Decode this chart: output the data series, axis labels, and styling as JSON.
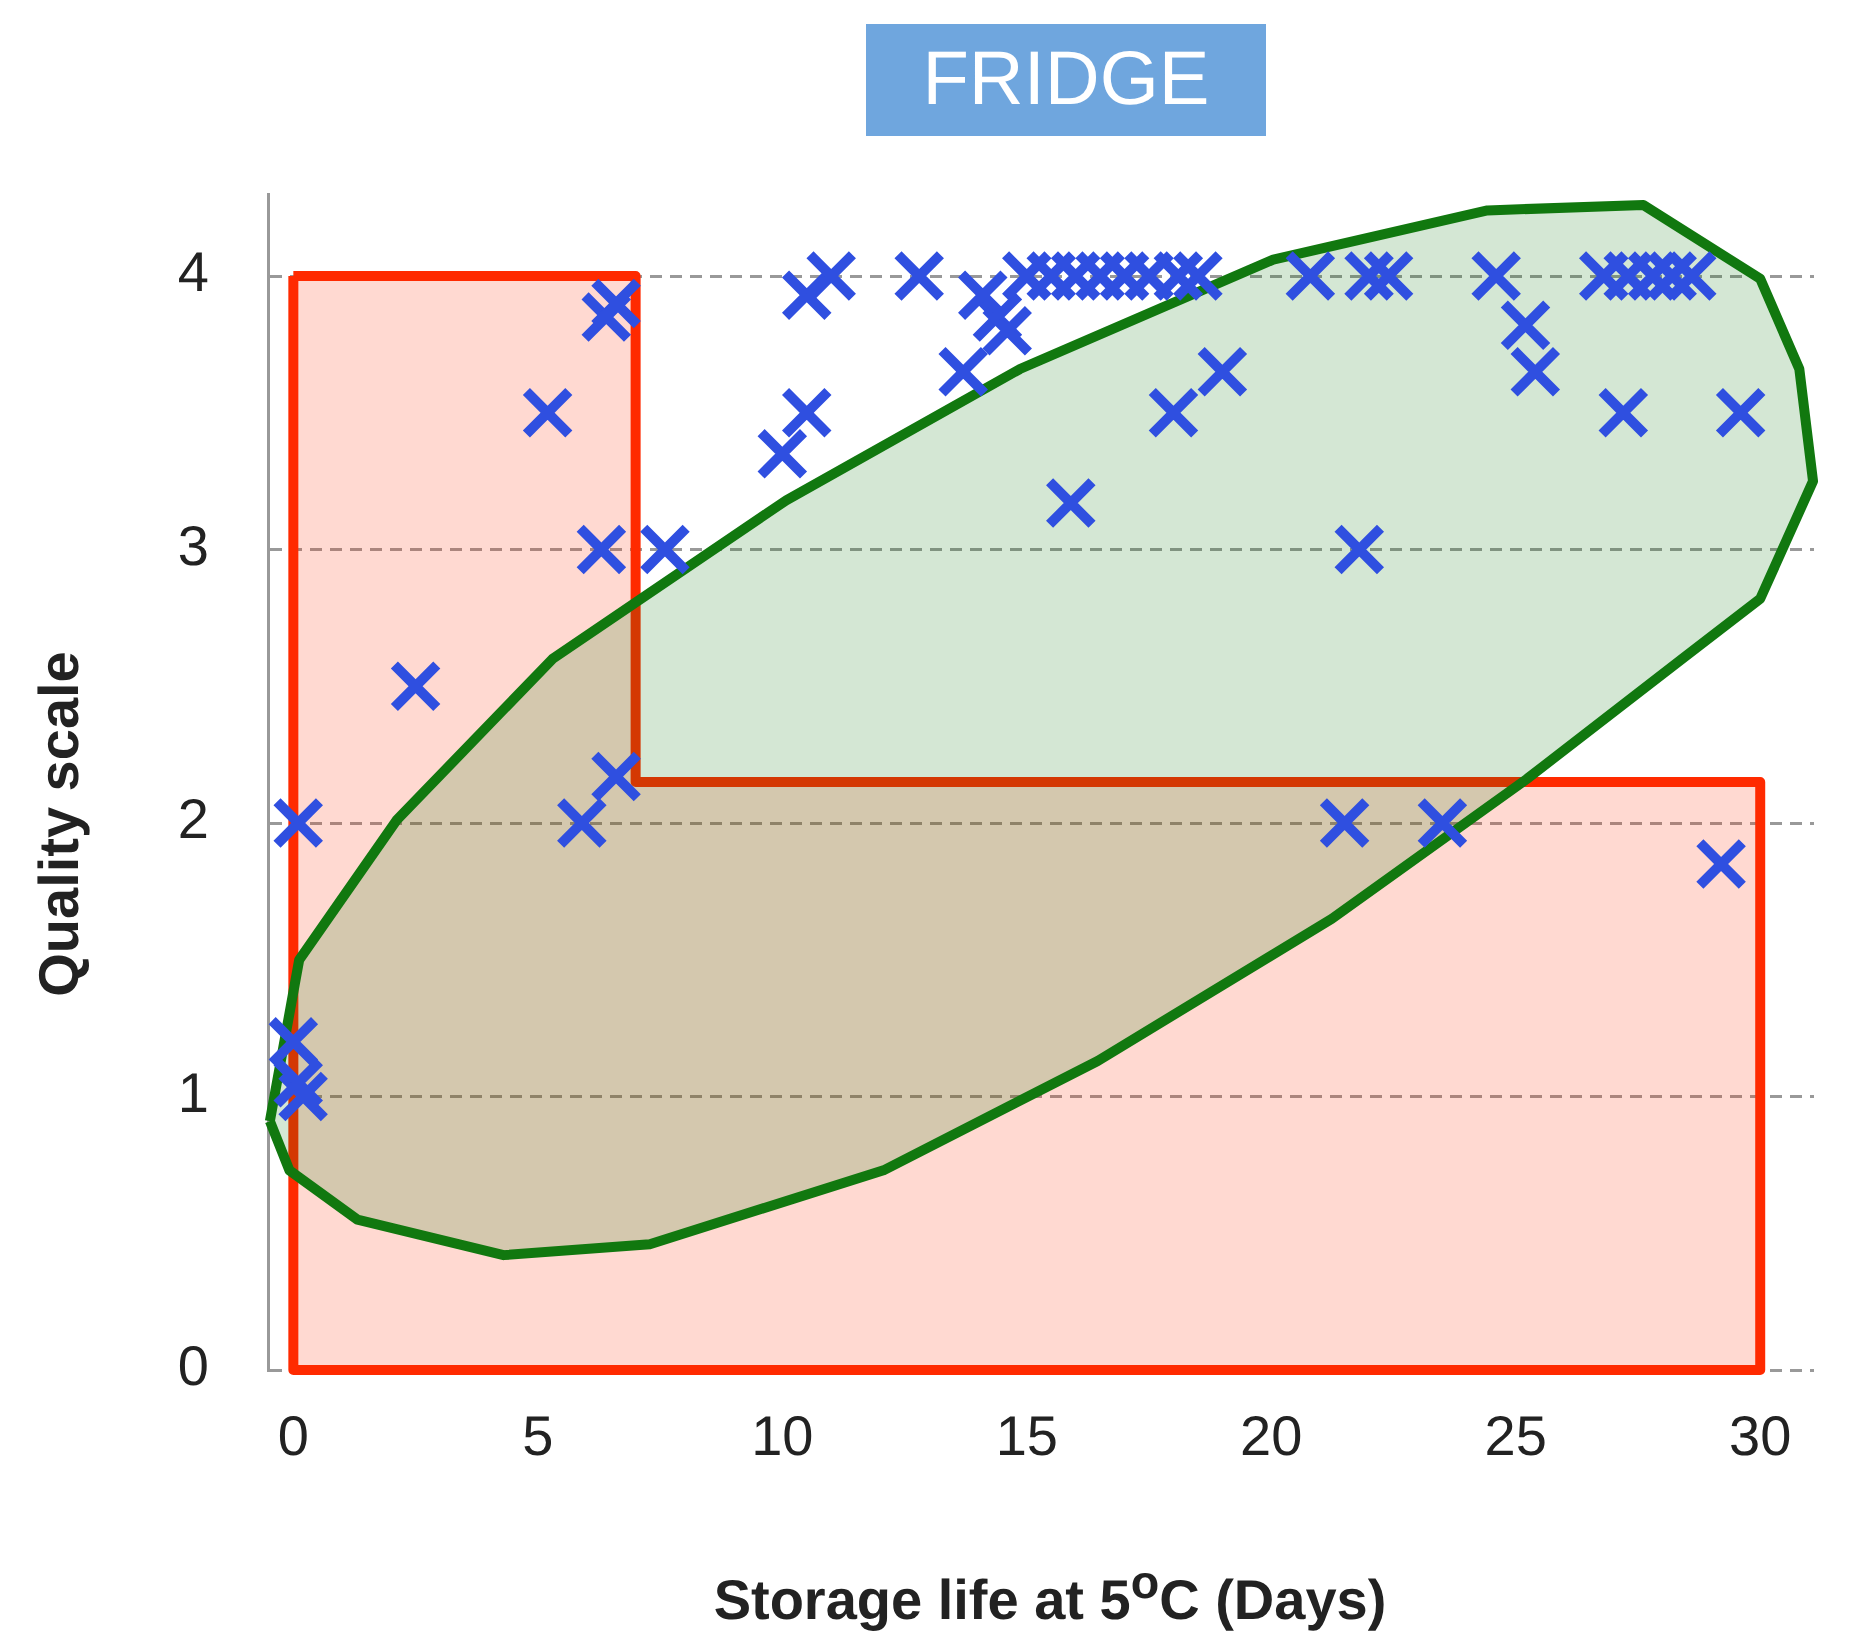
{
  "chart_data": {
    "type": "scatter",
    "title": "FRIDGE",
    "xlabel": "Storage life at 5$^{o}$C (Days)",
    "ylabel": "Quality scale",
    "xlim": [
      -0.5,
      31.1
    ],
    "xticks": [
      0,
      5,
      10,
      15,
      20,
      25,
      30
    ],
    "ylim": [
      0,
      4.3
    ],
    "yticks": [
      0,
      1,
      2,
      3,
      4
    ],
    "grid": "y",
    "marker": "cross",
    "legend": false,
    "series": [
      {
        "color": "#2f4fe0",
        "x": [
          0.1,
          0,
          0.2,
          0.1,
          2.5,
          5.2,
          6.4,
          6.6,
          6.3,
          7.6,
          5.9,
          6.6,
          10.0,
          10.5,
          10.5,
          11.0,
          12.8,
          13.7,
          14.4,
          14.6,
          14.1,
          15.0,
          15.5,
          16.0,
          16.5,
          17.0,
          17.5,
          18.1,
          18.5,
          15.9,
          18.0,
          19.0,
          20.8,
          22.0,
          22.4,
          21.5,
          21.8,
          23.5,
          24.6,
          25.2,
          25.4,
          27.2,
          29.6,
          26.8,
          27.3,
          27.8,
          28.2,
          28.6,
          29.2
        ],
        "values": [
          2.0,
          1.2,
          1.0,
          1.05,
          2.5,
          3.5,
          3.85,
          3.9,
          3.0,
          3.0,
          2.0,
          2.17,
          3.35,
          3.5,
          3.93,
          4.0,
          4.0,
          3.65,
          3.85,
          3.8,
          3.93,
          4.0,
          4.0,
          4.0,
          4.0,
          4.0,
          4.0,
          4.0,
          4.0,
          3.17,
          3.5,
          3.65,
          4.0,
          4.0,
          4.0,
          2.0,
          3.0,
          2.0,
          4.0,
          3.82,
          3.65,
          3.5,
          3.5,
          4.0,
          4.0,
          4.0,
          4.0,
          4.0,
          1.85
        ]
      },
      {
        "type": "area",
        "marker": "none",
        "color": "#11780f",
        "x": [
          -0.48,
          0.12,
          2.11,
          5.3,
          10.08,
          14.86,
          20.04,
          24.42,
          27.61,
          30.0,
          30.8,
          31.08,
          30.0,
          28.4,
          25.22,
          21.24,
          16.45,
          12.07,
          7.29,
          4.3,
          1.31,
          -0.08,
          -0.48
        ],
        "values": [
          0.91,
          1.5,
          2.01,
          2.6,
          3.18,
          3.66,
          4.06,
          4.24,
          4.26,
          3.99,
          3.66,
          3.25,
          2.82,
          2.6,
          2.16,
          1.65,
          1.13,
          0.73,
          0.46,
          0.42,
          0.55,
          0.73,
          0.91
        ]
      },
      {
        "type": "area",
        "marker": "none",
        "color": "#ff2a00",
        "x": [
          0,
          7,
          7,
          30,
          30,
          0,
          0
        ],
        "values": [
          4,
          4,
          2.15,
          2.15,
          0,
          0,
          4
        ]
      }
    ]
  }
}
